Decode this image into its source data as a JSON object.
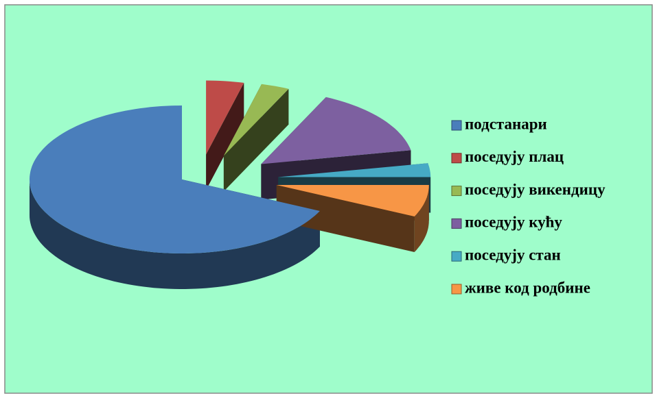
{
  "chart_data": {
    "type": "pie3d",
    "categories": [
      "подстанари",
      "поседују плац",
      "поседују викендицу",
      "поседују кућу",
      "поседују стан",
      "живе код родбине"
    ],
    "values": [
      68,
      4,
      3,
      15,
      3,
      7
    ],
    "colors": [
      "#4a7ebb",
      "#be4b48",
      "#98b954",
      "#7d60a0",
      "#46aac5",
      "#f79646"
    ],
    "legend": "right"
  }
}
